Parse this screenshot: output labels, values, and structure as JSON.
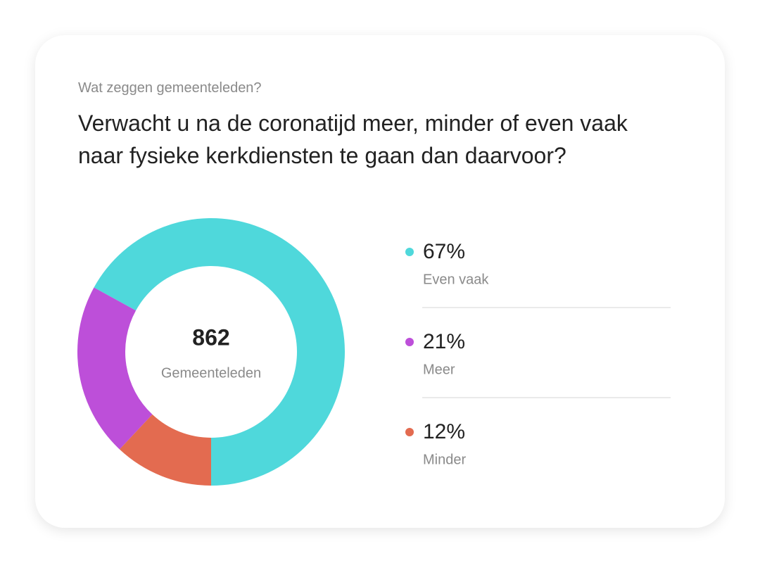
{
  "chart_data": {
    "type": "donut",
    "subtitle": "Wat zeggen gemeenteleden?",
    "title": "Verwacht u na de coronatijd meer, minder of even vaak naar fysieke kerkdiensten te gaan dan daarvoor?",
    "center_value": 862,
    "center_label": "Gemeenteleden",
    "categories": [
      "Even vaak",
      "Meer",
      "Minder"
    ],
    "values": [
      67,
      21,
      12
    ],
    "value_labels": [
      "67%",
      "21%",
      "12%"
    ],
    "colors": [
      "#4fd8db",
      "#bd4fd9",
      "#e36b50"
    ]
  }
}
